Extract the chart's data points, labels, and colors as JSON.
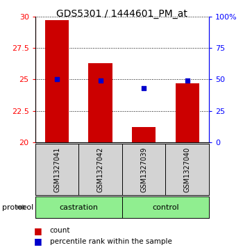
{
  "title": "GDS5301 / 1444601_PM_at",
  "samples": [
    "GSM1327041",
    "GSM1327042",
    "GSM1327039",
    "GSM1327040"
  ],
  "groups": [
    "castration",
    "castration",
    "control",
    "control"
  ],
  "bar_values": [
    29.7,
    26.3,
    21.2,
    24.7
  ],
  "percentile_values": [
    50,
    49,
    43,
    49
  ],
  "ylim_left": [
    20,
    30
  ],
  "ylim_right": [
    0,
    100
  ],
  "yticks_left": [
    20,
    22.5,
    25,
    27.5,
    30
  ],
  "yticks_right": [
    0,
    25,
    50,
    75,
    100
  ],
  "bar_color": "#CC0000",
  "dot_color": "#0000CC",
  "bar_width": 0.55,
  "legend_count_label": "count",
  "legend_percentile_label": "percentile rank within the sample",
  "protocol_label": "protocol",
  "sample_box_color": "#D3D3D3",
  "group_color": "#90EE90",
  "title_fontsize": 10,
  "tick_fontsize": 8,
  "sample_fontsize": 7,
  "legend_fontsize": 7.5
}
